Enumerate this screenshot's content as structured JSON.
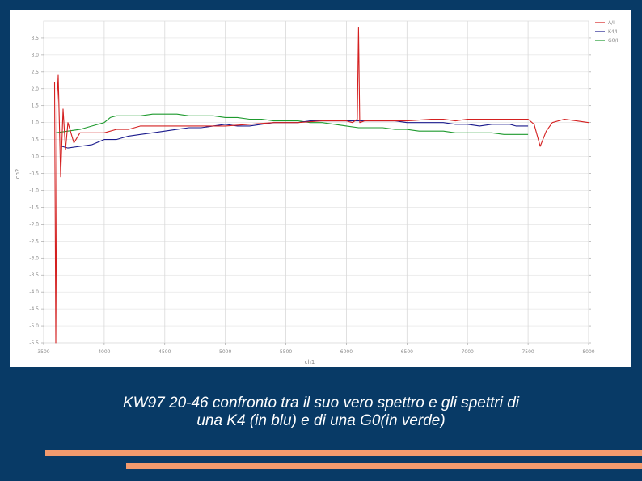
{
  "chart_data": {
    "type": "line",
    "xlabel": "ch1",
    "ylabel": "ch2",
    "xlim": [
      3500,
      8000
    ],
    "ylim": [
      -5.5,
      4.0
    ],
    "x_ticks": [
      3500,
      4000,
      4500,
      5000,
      5500,
      6000,
      6500,
      7000,
      7500,
      8000
    ],
    "x_tick_labels": [
      "3500",
      "4000",
      "4500",
      "5000",
      "5500",
      "6000",
      "6500",
      "7000",
      "7500",
      "8000"
    ],
    "y_ticks": [
      3.5,
      3.0,
      2.5,
      2.0,
      1.5,
      1.0,
      0.5,
      0.0,
      -0.5,
      -1.0,
      -1.5,
      -2.0,
      -2.5,
      -3.0,
      -3.5,
      -4.0,
      -4.5,
      -5.0,
      -5.5
    ],
    "y_tick_labels": [
      "3.5",
      "3.0",
      "2.5",
      "2.0",
      "1.5",
      "1.0",
      "0.5",
      "0.0",
      "-0.5",
      "-1.0",
      "-1.5",
      "-2.0",
      "-2.5",
      "-3.0",
      "-3.5",
      "-4.0",
      "-4.5",
      "-5.0",
      "-5.5"
    ],
    "grid": true,
    "legend_position": "top-right",
    "series": [
      {
        "name": "A/I",
        "color": "#d42020",
        "x": [
          3590,
          3600,
          3610,
          3620,
          3640,
          3660,
          3680,
          3700,
          3750,
          3800,
          3900,
          4000,
          4100,
          4200,
          4300,
          4400,
          4500,
          4600,
          4800,
          5000,
          5200,
          5400,
          5600,
          5800,
          6000,
          6050,
          6090,
          6100,
          6110,
          6150,
          6300,
          6500,
          6700,
          6800,
          6900,
          7000,
          7200,
          7350,
          7450,
          7500,
          7550,
          7600,
          7650,
          7700,
          7800,
          7900,
          8000
        ],
        "y": [
          2.2,
          -5.5,
          1.6,
          2.4,
          -0.6,
          1.4,
          0.2,
          1.0,
          0.4,
          0.7,
          0.7,
          0.7,
          0.8,
          0.8,
          0.9,
          0.9,
          0.9,
          0.9,
          0.9,
          0.9,
          0.95,
          1.0,
          1.0,
          1.05,
          1.05,
          1.0,
          1.1,
          3.8,
          1.0,
          1.05,
          1.05,
          1.05,
          1.1,
          1.1,
          1.05,
          1.1,
          1.1,
          1.1,
          1.1,
          1.1,
          0.95,
          0.3,
          0.75,
          1.0,
          1.1,
          1.05,
          1.0
        ]
      },
      {
        "name": "K4/I",
        "color": "#1a1a8c",
        "x": [
          3650,
          3700,
          3800,
          3900,
          4000,
          4100,
          4200,
          4300,
          4400,
          4500,
          4600,
          4700,
          4800,
          4900,
          5000,
          5100,
          5200,
          5300,
          5400,
          5500,
          5600,
          5700,
          5800,
          5900,
          6000,
          6100,
          6200,
          6300,
          6400,
          6500,
          6600,
          6700,
          6800,
          6900,
          7000,
          7100,
          7200,
          7250,
          7300,
          7350,
          7400,
          7450,
          7500
        ],
        "y": [
          0.3,
          0.25,
          0.3,
          0.35,
          0.5,
          0.5,
          0.6,
          0.65,
          0.7,
          0.75,
          0.8,
          0.85,
          0.85,
          0.9,
          0.95,
          0.9,
          0.9,
          0.95,
          1.0,
          1.0,
          1.0,
          1.05,
          1.05,
          1.05,
          1.05,
          1.05,
          1.05,
          1.05,
          1.05,
          1.0,
          1.0,
          1.0,
          1.0,
          0.95,
          0.95,
          0.9,
          0.95,
          0.95,
          0.95,
          0.95,
          0.9,
          0.9,
          0.9
        ]
      },
      {
        "name": "G0/I",
        "color": "#1e9a2e",
        "x": [
          3600,
          3700,
          3800,
          3900,
          4000,
          4050,
          4100,
          4200,
          4300,
          4400,
          4500,
          4600,
          4700,
          4800,
          4900,
          5000,
          5100,
          5200,
          5300,
          5400,
          5500,
          5600,
          5700,
          5800,
          5900,
          6000,
          6100,
          6200,
          6300,
          6400,
          6500,
          6600,
          6700,
          6800,
          6900,
          7000,
          7100,
          7200,
          7300,
          7400,
          7450,
          7500
        ],
        "y": [
          0.7,
          0.75,
          0.8,
          0.9,
          1.0,
          1.15,
          1.2,
          1.2,
          1.2,
          1.25,
          1.25,
          1.25,
          1.2,
          1.2,
          1.2,
          1.15,
          1.15,
          1.1,
          1.1,
          1.05,
          1.05,
          1.05,
          1.0,
          1.0,
          0.95,
          0.9,
          0.85,
          0.85,
          0.85,
          0.8,
          0.8,
          0.75,
          0.75,
          0.75,
          0.7,
          0.7,
          0.7,
          0.7,
          0.65,
          0.65,
          0.65,
          0.65
        ]
      }
    ]
  },
  "caption": {
    "line1": "KW97 20-46 confronto tra il suo vero spettro e gli spettri di",
    "line2": "una K4 (in blu) e di una G0(in verde)"
  },
  "colors": {
    "background": "#083a66",
    "accent_bars": "#f29a6e",
    "grid": "#d9d9d9"
  }
}
